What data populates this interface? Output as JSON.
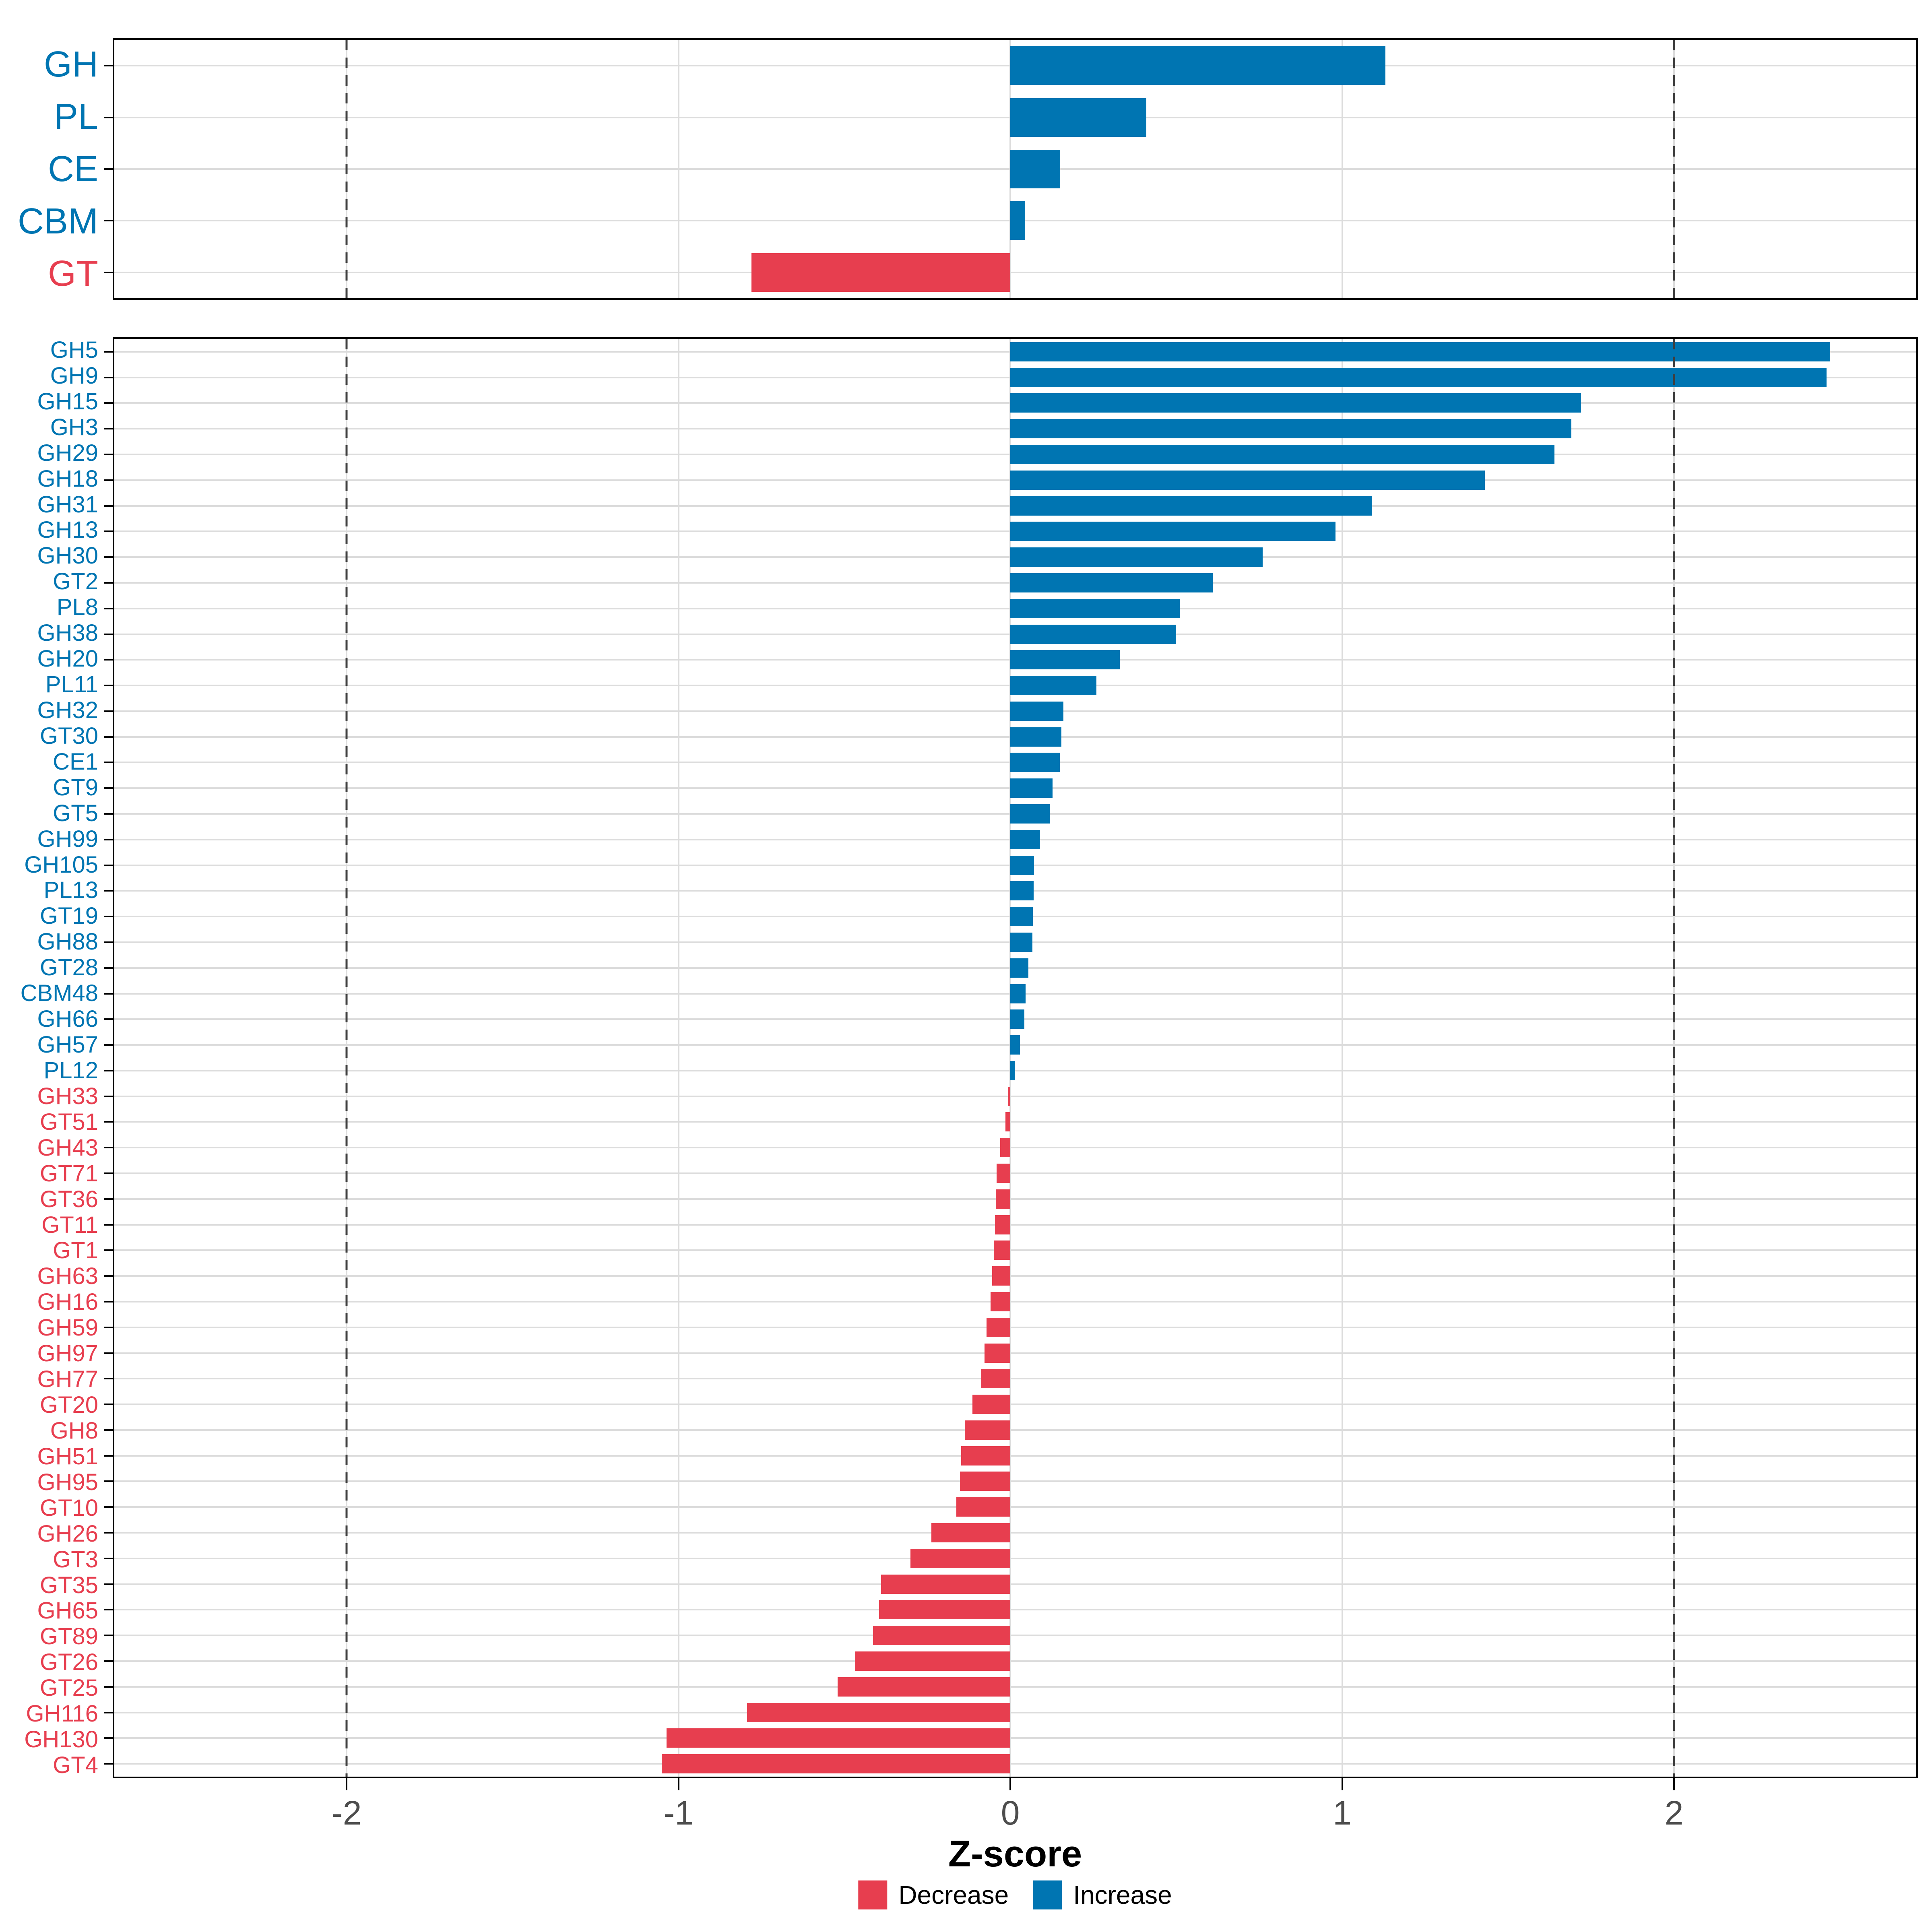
{
  "chart_data": {
    "type": "bar",
    "orientation": "horizontal",
    "title": "",
    "xlabel": "Z-score",
    "x_ticks": [
      -2,
      -1,
      0,
      1,
      2
    ],
    "x_tick_labels": [
      "-2",
      "-1",
      "0",
      "1",
      "2"
    ],
    "xlim": [
      -2.7,
      2.73
    ],
    "dashed_vlines": [
      -2,
      2
    ],
    "grid": "major-vertical-and-row-lines",
    "legend_position": "bottom",
    "colors": {
      "increase": "#0075B2",
      "decrease": "#E73E4F",
      "grid": "#DCDCDC",
      "dashed_line": "#3F3F3F",
      "axis_text": "#4D4D4D",
      "panel_border": "#000000"
    },
    "legend": {
      "items": [
        {
          "label": "Decrease",
          "color": "#E73E4F"
        },
        {
          "label": "Increase",
          "color": "#0075B2"
        }
      ]
    },
    "panels": [
      {
        "name": "cazyme-classes",
        "categories": [
          "GH",
          "PL",
          "CE",
          "CBM",
          "GT"
        ],
        "values": [
          1.13,
          0.41,
          0.15,
          0.045,
          -0.78
        ]
      },
      {
        "name": "cazyme-families",
        "categories": [
          "GH5",
          "GH9",
          "GH15",
          "GH3",
          "GH29",
          "GH18",
          "GH31",
          "GH13",
          "GH30",
          "GT2",
          "PL8",
          "GH38",
          "GH20",
          "PL11",
          "GH32",
          "GT30",
          "CE1",
          "GT9",
          "GT5",
          "GH99",
          "GH105",
          "PL13",
          "GT19",
          "GH88",
          "GT28",
          "CBM48",
          "GH66",
          "GH57",
          "PL12",
          "GH33",
          "GT51",
          "GH43",
          "GT71",
          "GT36",
          "GT11",
          "GT1",
          "GH63",
          "GH16",
          "GH59",
          "GH97",
          "GH77",
          "GT20",
          "GH8",
          "GH51",
          "GH95",
          "GT10",
          "GH26",
          "GT3",
          "GT35",
          "GH65",
          "GT89",
          "GT26",
          "GT25",
          "GH116",
          "GH130",
          "GT4"
        ],
        "values": [
          2.47,
          2.46,
          1.72,
          1.69,
          1.64,
          1.43,
          1.09,
          0.98,
          0.76,
          0.61,
          0.51,
          0.5,
          0.33,
          0.26,
          0.16,
          0.154,
          0.149,
          0.127,
          0.119,
          0.09,
          0.072,
          0.07,
          0.068,
          0.066,
          0.055,
          0.046,
          0.042,
          0.029,
          0.015,
          -0.008,
          -0.015,
          -0.03,
          -0.042,
          -0.044,
          -0.046,
          -0.05,
          -0.055,
          -0.06,
          -0.072,
          -0.078,
          -0.088,
          -0.114,
          -0.137,
          -0.148,
          -0.152,
          -0.163,
          -0.238,
          -0.301,
          -0.389,
          -0.395,
          -0.414,
          -0.468,
          -0.52,
          -0.793,
          -1.036,
          -1.051
        ]
      }
    ]
  }
}
